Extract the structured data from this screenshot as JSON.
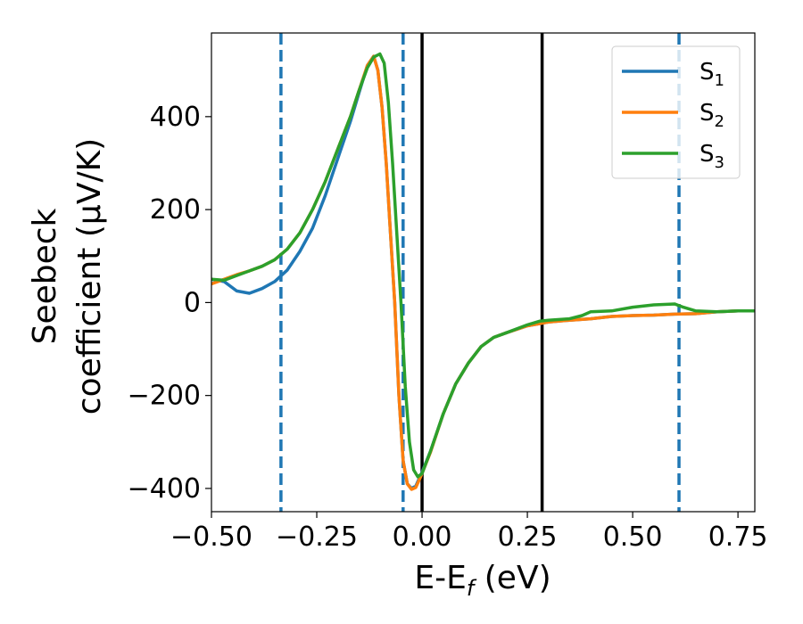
{
  "chart_data": {
    "type": "line",
    "title": "",
    "xlabel": {
      "main": "E-E",
      "sub": "f",
      "unit": " (eV)"
    },
    "ylabel": {
      "line1": "Seebeck",
      "line2": "coefficient  (μV/K)"
    },
    "xlim": [
      -0.5,
      0.79
    ],
    "ylim": [
      -450,
      580
    ],
    "xticks": [
      -0.5,
      -0.25,
      0.0,
      0.25,
      0.5,
      0.75
    ],
    "xtick_labels": [
      "−0.50",
      "−0.25",
      "0.00",
      "0.25",
      "0.50",
      "0.75"
    ],
    "yticks": [
      -400,
      -200,
      0,
      200,
      400
    ],
    "ytick_labels": [
      "−400",
      "−200",
      "0",
      "200",
      "400"
    ],
    "grid": false,
    "legend_position": "top-right",
    "vlines_dashed": {
      "color": "#1f77b4",
      "x": [
        -0.335,
        -0.045,
        0.61
      ]
    },
    "vlines_solid": {
      "color": "#000000",
      "x": [
        0.0,
        0.285
      ]
    },
    "series": [
      {
        "name": "S",
        "sub": "1",
        "color": "#1f77b4",
        "points": [
          [
            -0.5,
            50
          ],
          [
            -0.47,
            45
          ],
          [
            -0.44,
            25
          ],
          [
            -0.41,
            20
          ],
          [
            -0.38,
            30
          ],
          [
            -0.35,
            45
          ],
          [
            -0.32,
            70
          ],
          [
            -0.29,
            110
          ],
          [
            -0.26,
            160
          ],
          [
            -0.23,
            230
          ],
          [
            -0.2,
            310
          ],
          [
            -0.17,
            390
          ],
          [
            -0.15,
            450
          ],
          [
            -0.13,
            510
          ],
          [
            -0.115,
            530
          ],
          [
            -0.105,
            500
          ],
          [
            -0.095,
            420
          ],
          [
            -0.085,
            300
          ],
          [
            -0.075,
            150
          ],
          [
            -0.065,
            0
          ],
          [
            -0.055,
            -200
          ],
          [
            -0.045,
            -340
          ],
          [
            -0.035,
            -390
          ],
          [
            -0.025,
            -400
          ],
          [
            -0.015,
            -395
          ],
          [
            -0.005,
            -375
          ],
          [
            0.0,
            -365
          ],
          [
            0.02,
            -320
          ],
          [
            0.05,
            -240
          ],
          [
            0.08,
            -175
          ],
          [
            0.11,
            -130
          ],
          [
            0.14,
            -95
          ],
          [
            0.17,
            -75
          ],
          [
            0.2,
            -65
          ],
          [
            0.25,
            -50
          ],
          [
            0.3,
            -42
          ],
          [
            0.35,
            -38
          ],
          [
            0.4,
            -35
          ],
          [
            0.45,
            -30
          ],
          [
            0.5,
            -28
          ],
          [
            0.55,
            -27
          ],
          [
            0.6,
            -25
          ],
          [
            0.65,
            -24
          ],
          [
            0.7,
            -20
          ],
          [
            0.75,
            -18
          ],
          [
            0.79,
            -18
          ]
        ]
      },
      {
        "name": "S",
        "sub": "2",
        "color": "#ff7f0e",
        "points": [
          [
            -0.5,
            40
          ],
          [
            -0.47,
            50
          ],
          [
            -0.44,
            60
          ],
          [
            -0.41,
            68
          ],
          [
            -0.38,
            78
          ],
          [
            -0.35,
            92
          ],
          [
            -0.32,
            115
          ],
          [
            -0.29,
            150
          ],
          [
            -0.26,
            200
          ],
          [
            -0.23,
            260
          ],
          [
            -0.2,
            330
          ],
          [
            -0.17,
            400
          ],
          [
            -0.15,
            455
          ],
          [
            -0.13,
            510
          ],
          [
            -0.115,
            530
          ],
          [
            -0.105,
            500
          ],
          [
            -0.095,
            420
          ],
          [
            -0.085,
            300
          ],
          [
            -0.075,
            150
          ],
          [
            -0.065,
            0
          ],
          [
            -0.055,
            -200
          ],
          [
            -0.045,
            -340
          ],
          [
            -0.035,
            -390
          ],
          [
            -0.025,
            -402
          ],
          [
            -0.015,
            -398
          ],
          [
            -0.005,
            -378
          ],
          [
            0.0,
            -368
          ],
          [
            0.02,
            -322
          ],
          [
            0.05,
            -240
          ],
          [
            0.08,
            -175
          ],
          [
            0.11,
            -130
          ],
          [
            0.14,
            -95
          ],
          [
            0.17,
            -75
          ],
          [
            0.2,
            -65
          ],
          [
            0.25,
            -50
          ],
          [
            0.3,
            -42
          ],
          [
            0.35,
            -38
          ],
          [
            0.4,
            -35
          ],
          [
            0.45,
            -30
          ],
          [
            0.5,
            -28
          ],
          [
            0.55,
            -27
          ],
          [
            0.6,
            -25
          ],
          [
            0.65,
            -24
          ],
          [
            0.7,
            -20
          ],
          [
            0.75,
            -18
          ],
          [
            0.79,
            -18
          ]
        ]
      },
      {
        "name": "S",
        "sub": "3",
        "color": "#2ca02c",
        "points": [
          [
            -0.5,
            50
          ],
          [
            -0.47,
            48
          ],
          [
            -0.44,
            58
          ],
          [
            -0.41,
            68
          ],
          [
            -0.38,
            78
          ],
          [
            -0.35,
            92
          ],
          [
            -0.32,
            115
          ],
          [
            -0.29,
            150
          ],
          [
            -0.26,
            200
          ],
          [
            -0.23,
            260
          ],
          [
            -0.2,
            330
          ],
          [
            -0.17,
            400
          ],
          [
            -0.15,
            455
          ],
          [
            -0.13,
            505
          ],
          [
            -0.115,
            528
          ],
          [
            -0.1,
            535
          ],
          [
            -0.09,
            515
          ],
          [
            -0.08,
            430
          ],
          [
            -0.07,
            300
          ],
          [
            -0.06,
            150
          ],
          [
            -0.05,
            0
          ],
          [
            -0.04,
            -180
          ],
          [
            -0.03,
            -300
          ],
          [
            -0.02,
            -360
          ],
          [
            -0.01,
            -375
          ],
          [
            0.0,
            -368
          ],
          [
            0.02,
            -320
          ],
          [
            0.05,
            -240
          ],
          [
            0.08,
            -175
          ],
          [
            0.11,
            -130
          ],
          [
            0.14,
            -95
          ],
          [
            0.17,
            -75
          ],
          [
            0.2,
            -65
          ],
          [
            0.25,
            -48
          ],
          [
            0.28,
            -40
          ],
          [
            0.3,
            -38
          ],
          [
            0.35,
            -35
          ],
          [
            0.38,
            -28
          ],
          [
            0.4,
            -20
          ],
          [
            0.45,
            -18
          ],
          [
            0.5,
            -10
          ],
          [
            0.55,
            -5
          ],
          [
            0.6,
            -3
          ],
          [
            0.62,
            -10
          ],
          [
            0.65,
            -18
          ],
          [
            0.7,
            -20
          ],
          [
            0.75,
            -18
          ],
          [
            0.79,
            -18
          ]
        ]
      }
    ]
  }
}
